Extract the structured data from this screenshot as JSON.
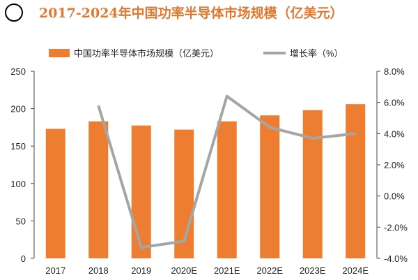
{
  "chart_data": {
    "type": "bar+line",
    "title": "2017-2024年中国功率半导体市场规模（亿美元）",
    "categories": [
      "2017",
      "2018",
      "2019",
      "2020E",
      "2021E",
      "2022E",
      "2023E",
      "2024E"
    ],
    "series": [
      {
        "name": "中国功率半导体市场规模（亿美元）",
        "type": "bar",
        "axis": "left",
        "color": "#ED7D31",
        "values": [
          173,
          183,
          177.5,
          172,
          183,
          191,
          198,
          206
        ]
      },
      {
        "name": "增长率（%）",
        "type": "line",
        "axis": "right",
        "color": "#A5A5A5",
        "values": [
          null,
          5.8,
          -3.3,
          -2.9,
          6.4,
          4.4,
          3.7,
          4.0
        ]
      }
    ],
    "left_axis": {
      "ylim": [
        0,
        250
      ],
      "ticks": [
        "0",
        "50",
        "100",
        "150",
        "200",
        "250"
      ]
    },
    "right_axis": {
      "ylim": [
        -4,
        8
      ],
      "ticks": [
        "-4.0%",
        "-2.0%",
        "0.0%",
        "2.0%",
        "4.0%",
        "6.0%",
        "8.0%"
      ]
    },
    "legend": "top",
    "grid": false
  }
}
